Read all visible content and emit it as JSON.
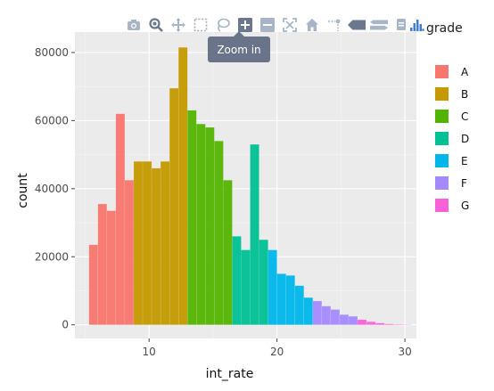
{
  "modebar": {
    "buttons": [
      "camera-icon",
      "zoom-icon",
      "pan-icon",
      "box-select-icon",
      "lasso-select-icon",
      "zoom-in-icon",
      "zoom-out-icon",
      "autoscale-icon",
      "reset-axes-icon",
      "spike-lines-icon",
      "hover-closest-icon",
      "hover-compare-icon",
      "plotly-logo-icon"
    ],
    "tooltip": "Zoom in"
  },
  "chart_data": {
    "type": "bar",
    "subtype": "stacked-histogram",
    "xlabel": "int_rate",
    "ylabel": "count",
    "xlim": [
      4.2,
      30.9
    ],
    "ylim": [
      -4000,
      86000
    ],
    "xticks": [
      10,
      20,
      30
    ],
    "yticks": [
      0,
      20000,
      40000,
      60000,
      80000
    ],
    "ytick_labels": [
      "0",
      "20000",
      "40000",
      "60000",
      "80000"
    ],
    "grid": true,
    "bin_width": 0.7,
    "bin_start": 5.3,
    "legend": {
      "title": "grade",
      "position": "right"
    },
    "colors": {
      "A": "#f8766d",
      "B": "#c49a00",
      "C": "#53b400",
      "D": "#00c094",
      "E": "#00b6eb",
      "F": "#a58aff",
      "G": "#fb61d7"
    },
    "series": [
      {
        "name": "A",
        "values": [
          23500,
          35500,
          33500,
          62000,
          42500,
          0,
          0,
          0,
          0,
          0,
          0,
          0,
          0,
          0,
          0,
          0,
          0,
          0,
          0,
          0,
          0,
          0,
          0,
          0,
          0,
          0,
          0,
          0,
          0,
          0,
          0,
          0,
          0,
          0,
          0,
          0
        ]
      },
      {
        "name": "B",
        "values": [
          0,
          0,
          0,
          0,
          0,
          48000,
          48000,
          46000,
          48000,
          69500,
          81500,
          0,
          0,
          0,
          0,
          0,
          0,
          0,
          0,
          0,
          0,
          0,
          0,
          0,
          0,
          0,
          0,
          0,
          0,
          0,
          0,
          0,
          0,
          0,
          0,
          0
        ]
      },
      {
        "name": "C",
        "values": [
          0,
          0,
          0,
          0,
          0,
          0,
          0,
          0,
          0,
          0,
          0,
          63000,
          59000,
          58000,
          54000,
          42500,
          0,
          0,
          0,
          0,
          0,
          0,
          0,
          0,
          0,
          0,
          0,
          0,
          0,
          0,
          0,
          0,
          0,
          0,
          0,
          0
        ]
      },
      {
        "name": "D",
        "values": [
          0,
          0,
          0,
          0,
          0,
          0,
          0,
          0,
          0,
          0,
          0,
          0,
          0,
          0,
          0,
          0,
          26000,
          22000,
          53000,
          25000,
          0,
          0,
          0,
          0,
          0,
          0,
          0,
          0,
          0,
          0,
          0,
          0,
          0,
          0,
          0,
          0
        ]
      },
      {
        "name": "E",
        "values": [
          0,
          0,
          0,
          0,
          0,
          0,
          0,
          0,
          0,
          0,
          0,
          0,
          0,
          0,
          0,
          0,
          0,
          0,
          0,
          0,
          22000,
          15000,
          14500,
          11500,
          8000,
          0,
          0,
          0,
          0,
          0,
          0,
          0,
          0,
          0,
          0,
          0
        ]
      },
      {
        "name": "F",
        "values": [
          0,
          0,
          0,
          0,
          0,
          0,
          0,
          0,
          0,
          0,
          0,
          0,
          0,
          0,
          0,
          0,
          0,
          0,
          0,
          0,
          0,
          0,
          0,
          0,
          0,
          7000,
          5500,
          4500,
          3000,
          2500,
          0,
          0,
          0,
          0,
          0,
          0
        ]
      },
      {
        "name": "G",
        "values": [
          0,
          0,
          0,
          0,
          0,
          0,
          0,
          0,
          0,
          0,
          0,
          0,
          0,
          0,
          0,
          0,
          0,
          0,
          0,
          0,
          0,
          0,
          0,
          0,
          0,
          0,
          0,
          0,
          0,
          0,
          1500,
          900,
          500,
          250,
          150,
          80
        ]
      }
    ]
  }
}
